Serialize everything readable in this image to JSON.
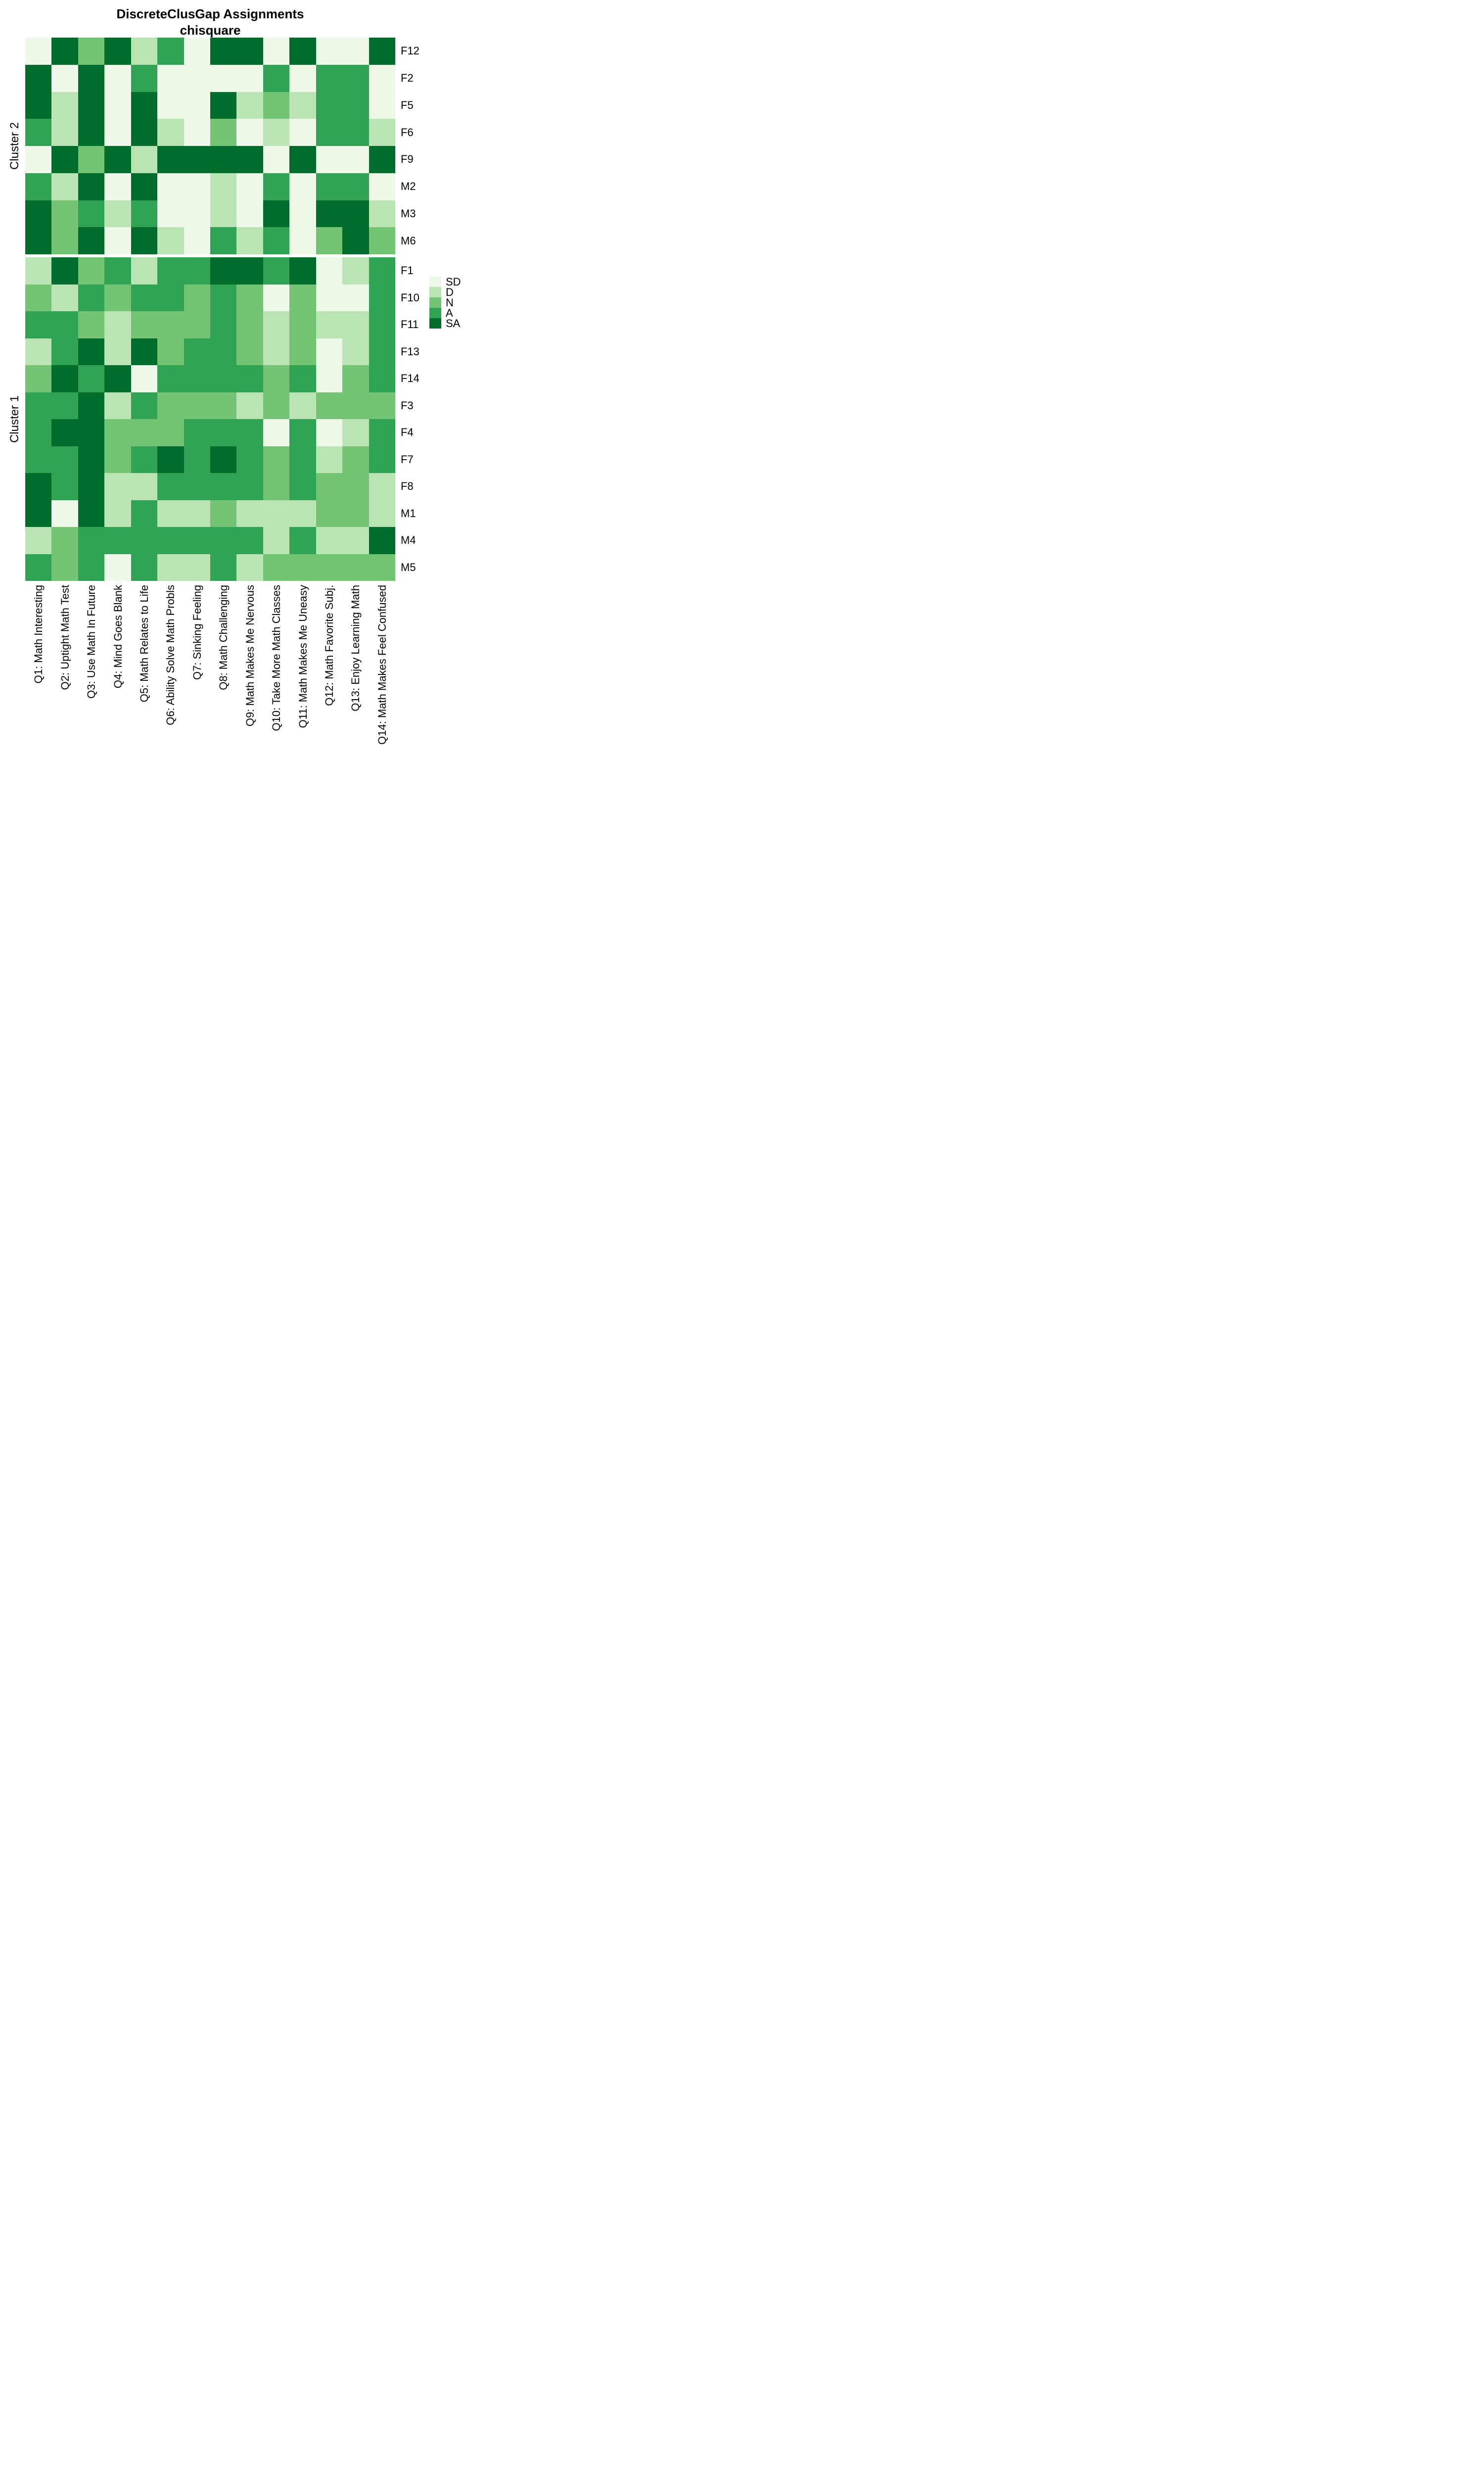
{
  "title": {
    "line1": "DiscreteClusGap Assignments",
    "line2": "chisquare"
  },
  "chart_data": {
    "type": "heatmap",
    "title": "DiscreteClusGap Assignments",
    "subtitle": "chisquare",
    "legend": {
      "position": "right",
      "levels": [
        "SD",
        "D",
        "N",
        "A",
        "SA"
      ]
    },
    "colors": {
      "SD": "#EDF8E9",
      "D": "#BAE4B3",
      "N": "#74C476",
      "A": "#31A354",
      "SA": "#006D2C"
    },
    "columns": [
      "Q1: Math Interesting",
      "Q2: Uptight Math Test",
      "Q3: Use Math In Future",
      "Q4: Mind Goes Blank",
      "Q5: Math Relates to Life",
      "Q6: Ability Solve Math Probls",
      "Q7: Sinking Feeling",
      "Q8: Math Challenging",
      "Q9: Math Makes Me Nervous",
      "Q10: Take More Math Classes",
      "Q11: Math Makes Me Uneasy",
      "Q12: Math Favorite Subj.",
      "Q13: Enjoy Learning Math",
      "Q14: Math Makes Feel Confused"
    ],
    "panels": [
      {
        "name": "Cluster 2",
        "rows": [
          {
            "label": "F12",
            "values": [
              "SD",
              "SA",
              "N",
              "SA",
              "D",
              "A",
              "SD",
              "SA",
              "SA",
              "SD",
              "SA",
              "SD",
              "SD",
              "SA"
            ]
          },
          {
            "label": "F2",
            "values": [
              "SA",
              "SD",
              "SA",
              "SD",
              "A",
              "SD",
              "SD",
              "SD",
              "SD",
              "A",
              "SD",
              "A",
              "A",
              "SD"
            ]
          },
          {
            "label": "F5",
            "values": [
              "SA",
              "D",
              "SA",
              "SD",
              "SA",
              "SD",
              "SD",
              "SA",
              "D",
              "N",
              "D",
              "A",
              "A",
              "SD"
            ]
          },
          {
            "label": "F6",
            "values": [
              "A",
              "D",
              "SA",
              "SD",
              "SA",
              "D",
              "SD",
              "N",
              "SD",
              "D",
              "SD",
              "A",
              "A",
              "D"
            ]
          },
          {
            "label": "F9",
            "values": [
              "SD",
              "SA",
              "N",
              "SA",
              "D",
              "SA",
              "SA",
              "SA",
              "SA",
              "SD",
              "SA",
              "SD",
              "SD",
              "SA"
            ]
          },
          {
            "label": "M2",
            "values": [
              "A",
              "D",
              "SA",
              "SD",
              "SA",
              "SD",
              "SD",
              "D",
              "SD",
              "A",
              "SD",
              "A",
              "A",
              "SD"
            ]
          },
          {
            "label": "M3",
            "values": [
              "SA",
              "N",
              "A",
              "D",
              "A",
              "SD",
              "SD",
              "D",
              "SD",
              "SA",
              "SD",
              "SA",
              "SA",
              "D"
            ]
          },
          {
            "label": "M6",
            "values": [
              "SA",
              "N",
              "SA",
              "SD",
              "SA",
              "D",
              "SD",
              "A",
              "D",
              "A",
              "SD",
              "N",
              "SA",
              "N"
            ]
          }
        ]
      },
      {
        "name": "Cluster 1",
        "rows": [
          {
            "label": "F1",
            "values": [
              "D",
              "SA",
              "N",
              "A",
              "D",
              "A",
              "A",
              "SA",
              "SA",
              "A",
              "SA",
              "SD",
              "D",
              "A"
            ]
          },
          {
            "label": "F10",
            "values": [
              "N",
              "D",
              "A",
              "N",
              "A",
              "A",
              "N",
              "A",
              "N",
              "SD",
              "N",
              "SD",
              "SD",
              "A"
            ]
          },
          {
            "label": "F11",
            "values": [
              "A",
              "A",
              "N",
              "D",
              "N",
              "N",
              "N",
              "A",
              "N",
              "D",
              "N",
              "D",
              "D",
              "A"
            ]
          },
          {
            "label": "F13",
            "values": [
              "D",
              "A",
              "SA",
              "D",
              "SA",
              "N",
              "A",
              "A",
              "N",
              "D",
              "N",
              "SD",
              "D",
              "A"
            ]
          },
          {
            "label": "F14",
            "values": [
              "N",
              "SA",
              "A",
              "SA",
              "SD",
              "A",
              "A",
              "A",
              "A",
              "N",
              "A",
              "SD",
              "N",
              "A"
            ]
          },
          {
            "label": "F3",
            "values": [
              "A",
              "A",
              "SA",
              "D",
              "A",
              "N",
              "N",
              "N",
              "D",
              "N",
              "D",
              "N",
              "N",
              "N"
            ]
          },
          {
            "label": "F4",
            "values": [
              "A",
              "SA",
              "SA",
              "N",
              "N",
              "N",
              "A",
              "A",
              "A",
              "SD",
              "A",
              "SD",
              "D",
              "A"
            ]
          },
          {
            "label": "F7",
            "values": [
              "A",
              "A",
              "SA",
              "N",
              "A",
              "SA",
              "A",
              "SA",
              "A",
              "N",
              "A",
              "D",
              "N",
              "A"
            ]
          },
          {
            "label": "F8",
            "values": [
              "SA",
              "A",
              "SA",
              "D",
              "D",
              "A",
              "A",
              "A",
              "A",
              "N",
              "A",
              "N",
              "N",
              "D"
            ]
          },
          {
            "label": "M1",
            "values": [
              "SA",
              "SD",
              "SA",
              "D",
              "A",
              "D",
              "D",
              "N",
              "D",
              "D",
              "D",
              "N",
              "N",
              "D"
            ]
          },
          {
            "label": "M4",
            "values": [
              "D",
              "N",
              "A",
              "A",
              "A",
              "A",
              "A",
              "A",
              "A",
              "D",
              "A",
              "D",
              "D",
              "SA"
            ]
          },
          {
            "label": "M5",
            "values": [
              "A",
              "N",
              "A",
              "SD",
              "A",
              "D",
              "D",
              "A",
              "D",
              "N",
              "N",
              "N",
              "N",
              "N"
            ]
          }
        ]
      }
    ]
  }
}
